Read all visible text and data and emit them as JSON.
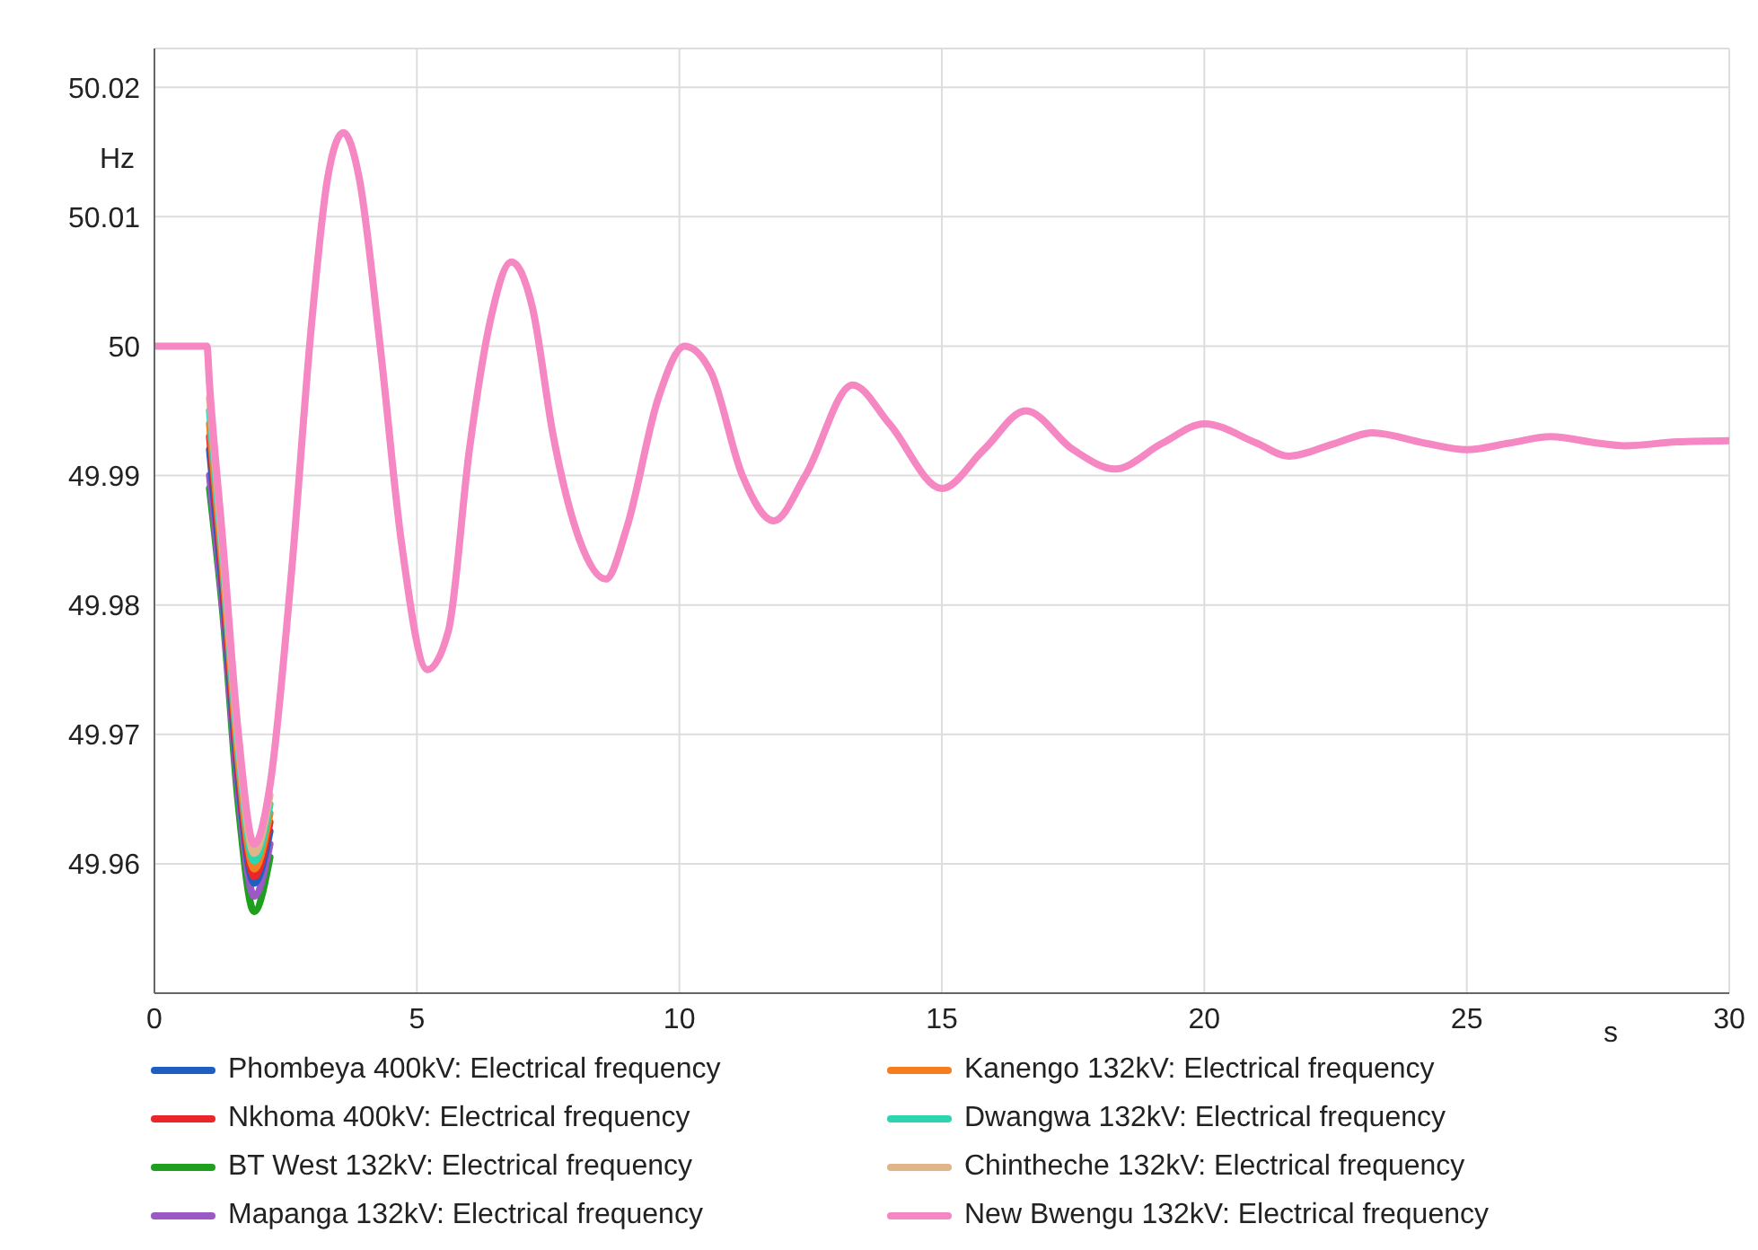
{
  "chart_data": {
    "type": "line",
    "xlabel": "s",
    "ylabel": "Hz",
    "x": [
      0,
      1,
      1.05,
      1.3,
      1.6,
      1.9,
      2.2,
      2.6,
      3.0,
      3.3,
      3.6,
      3.9,
      4.3,
      4.7,
      5.2,
      5.6,
      6.0,
      6.4,
      6.8,
      7.2,
      7.6,
      8.1,
      8.6,
      9.0,
      9.6,
      10.1,
      10.6,
      11.2,
      11.8,
      12.4,
      13.3,
      14.0,
      15.0,
      15.8,
      16.6,
      17.5,
      18.3,
      19.2,
      20.0,
      21.0,
      21.6,
      22.5,
      23.2,
      24.2,
      25.0,
      25.8,
      26.6,
      27.5,
      28.0,
      29.0,
      30
    ],
    "series": [
      {
        "name": "Phombeya 400kV: Electrical frequency",
        "color": "#1f5fbf",
        "values": [
          null,
          null,
          49.992,
          49.9812,
          49.9665,
          49.9585,
          49.9625,
          null,
          null,
          null,
          null,
          null,
          null,
          null,
          null,
          null,
          null,
          null,
          null,
          null,
          null,
          null,
          null,
          null,
          null,
          null,
          null,
          null,
          null,
          null,
          null,
          null,
          null,
          null,
          null,
          null,
          null,
          null,
          null,
          null,
          null,
          null,
          null,
          null,
          null,
          null,
          null,
          null,
          null,
          null,
          null
        ]
      },
      {
        "name": "Nkhoma 400kV: Electrical frequency",
        "color": "#e8262b",
        "values": [
          null,
          null,
          49.993,
          49.982,
          49.9672,
          49.959,
          49.9632,
          null,
          null,
          null,
          null,
          null,
          null,
          null,
          null,
          null,
          null,
          null,
          null,
          null,
          null,
          null,
          null,
          null,
          null,
          null,
          null,
          null,
          null,
          null,
          null,
          null,
          null,
          null,
          null,
          null,
          null,
          null,
          null,
          null,
          null,
          null,
          null,
          null,
          null,
          null,
          null,
          null,
          null,
          null,
          null
        ]
      },
      {
        "name": "BT West 132kV: Electrical frequency",
        "color": "#1ea01e",
        "values": [
          null,
          null,
          49.989,
          49.9795,
          49.9645,
          49.9563,
          49.9605,
          null,
          null,
          null,
          null,
          null,
          null,
          null,
          null,
          null,
          null,
          null,
          null,
          null,
          null,
          null,
          null,
          null,
          null,
          null,
          null,
          null,
          null,
          null,
          null,
          null,
          null,
          null,
          null,
          null,
          null,
          null,
          null,
          null,
          null,
          null,
          null,
          null,
          null,
          null,
          null,
          null,
          null,
          null,
          null
        ]
      },
      {
        "name": "Mapanga 132kV: Electrical frequency",
        "color": "#9b59c6",
        "values": [
          null,
          null,
          49.99,
          49.98,
          49.9655,
          49.9575,
          49.9615,
          null,
          null,
          null,
          null,
          null,
          null,
          null,
          null,
          null,
          null,
          null,
          null,
          null,
          null,
          null,
          null,
          null,
          null,
          null,
          null,
          null,
          null,
          null,
          null,
          null,
          null,
          null,
          null,
          null,
          null,
          null,
          null,
          null,
          null,
          null,
          null,
          null,
          null,
          null,
          null,
          null,
          null,
          null,
          null
        ]
      },
      {
        "name": "Kanengo 132kV: Electrical frequency",
        "color": "#f57c1f",
        "values": [
          null,
          null,
          49.994,
          49.9828,
          49.9679,
          49.9596,
          49.9639,
          null,
          null,
          null,
          null,
          null,
          null,
          null,
          null,
          null,
          null,
          null,
          null,
          null,
          null,
          null,
          null,
          null,
          null,
          null,
          null,
          null,
          null,
          null,
          null,
          null,
          null,
          null,
          null,
          null,
          null,
          null,
          null,
          null,
          null,
          null,
          null,
          null,
          null,
          null,
          null,
          null,
          null,
          null,
          null
        ]
      },
      {
        "name": "Dwangwa 132kV: Electrical frequency",
        "color": "#2dd4b0",
        "values": [
          null,
          null,
          49.995,
          49.9835,
          49.9686,
          49.9602,
          49.9646,
          null,
          null,
          null,
          null,
          null,
          null,
          null,
          null,
          null,
          null,
          null,
          null,
          null,
          null,
          null,
          null,
          null,
          null,
          null,
          null,
          null,
          null,
          null,
          null,
          null,
          null,
          null,
          null,
          null,
          null,
          null,
          null,
          null,
          null,
          null,
          null,
          null,
          null,
          null,
          null,
          null,
          null,
          null,
          null
        ]
      },
      {
        "name": "Chintheche 132kV: Electrical frequency",
        "color": "#e0b58a",
        "values": [
          null,
          null,
          49.996,
          49.9842,
          49.9693,
          49.9608,
          49.9653,
          null,
          null,
          null,
          null,
          null,
          null,
          null,
          null,
          null,
          null,
          null,
          null,
          null,
          null,
          null,
          null,
          null,
          null,
          null,
          null,
          null,
          null,
          null,
          null,
          null,
          null,
          null,
          null,
          null,
          null,
          null,
          null,
          null,
          null,
          null,
          null,
          null,
          null,
          null,
          null,
          null,
          null,
          null,
          null
        ]
      },
      {
        "name": "New Bwengu 132kV: Electrical frequency",
        "color": "#f587c2",
        "values": [
          50,
          50,
          49.997,
          49.985,
          49.97,
          49.9615,
          49.966,
          49.982,
          50.002,
          50.013,
          50.0165,
          50.013,
          50.0,
          49.985,
          49.975,
          49.978,
          49.992,
          50.002,
          50.0065,
          50.003,
          49.993,
          49.985,
          49.982,
          49.986,
          49.996,
          50.0,
          49.998,
          49.99,
          49.9865,
          49.99,
          49.997,
          49.994,
          49.989,
          49.992,
          49.995,
          49.992,
          49.9905,
          49.9925,
          49.994,
          49.9925,
          49.9915,
          49.9925,
          49.9933,
          49.9925,
          49.992,
          49.9925,
          49.993,
          49.9925,
          49.9923,
          49.9926,
          49.9927
        ]
      }
    ],
    "xlim": [
      0,
      30
    ],
    "xticks": [
      0,
      5,
      10,
      15,
      20,
      25,
      30
    ],
    "ylim": [
      49.95,
      50.023
    ],
    "yticks": [
      49.96,
      49.97,
      49.98,
      49.99,
      {
        "value": 50,
        "label": "50"
      },
      50.01,
      50.02
    ],
    "grid": true,
    "legend": "bottom",
    "marker": "none",
    "line_style": "solid"
  }
}
